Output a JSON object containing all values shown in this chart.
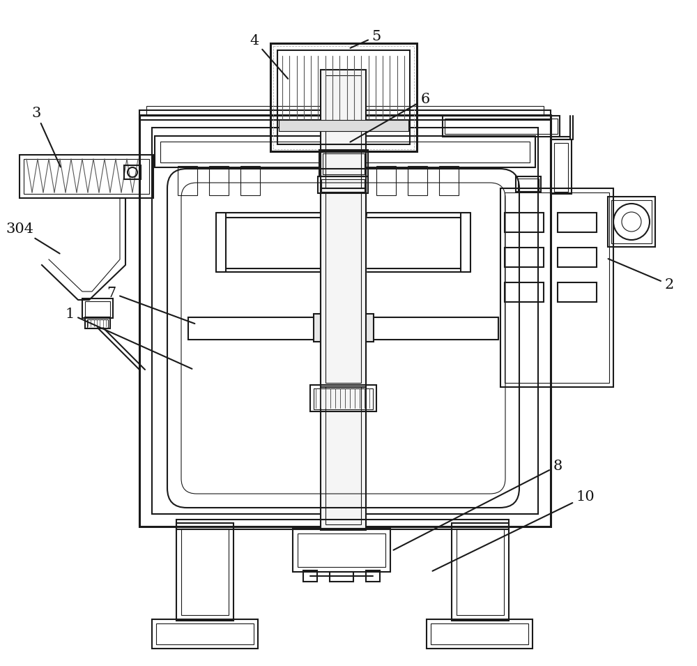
{
  "bg_color": "#ffffff",
  "lc": "#1a1a1a",
  "lw": 1.5,
  "tlw": 0.8,
  "label_fontsize": 15
}
